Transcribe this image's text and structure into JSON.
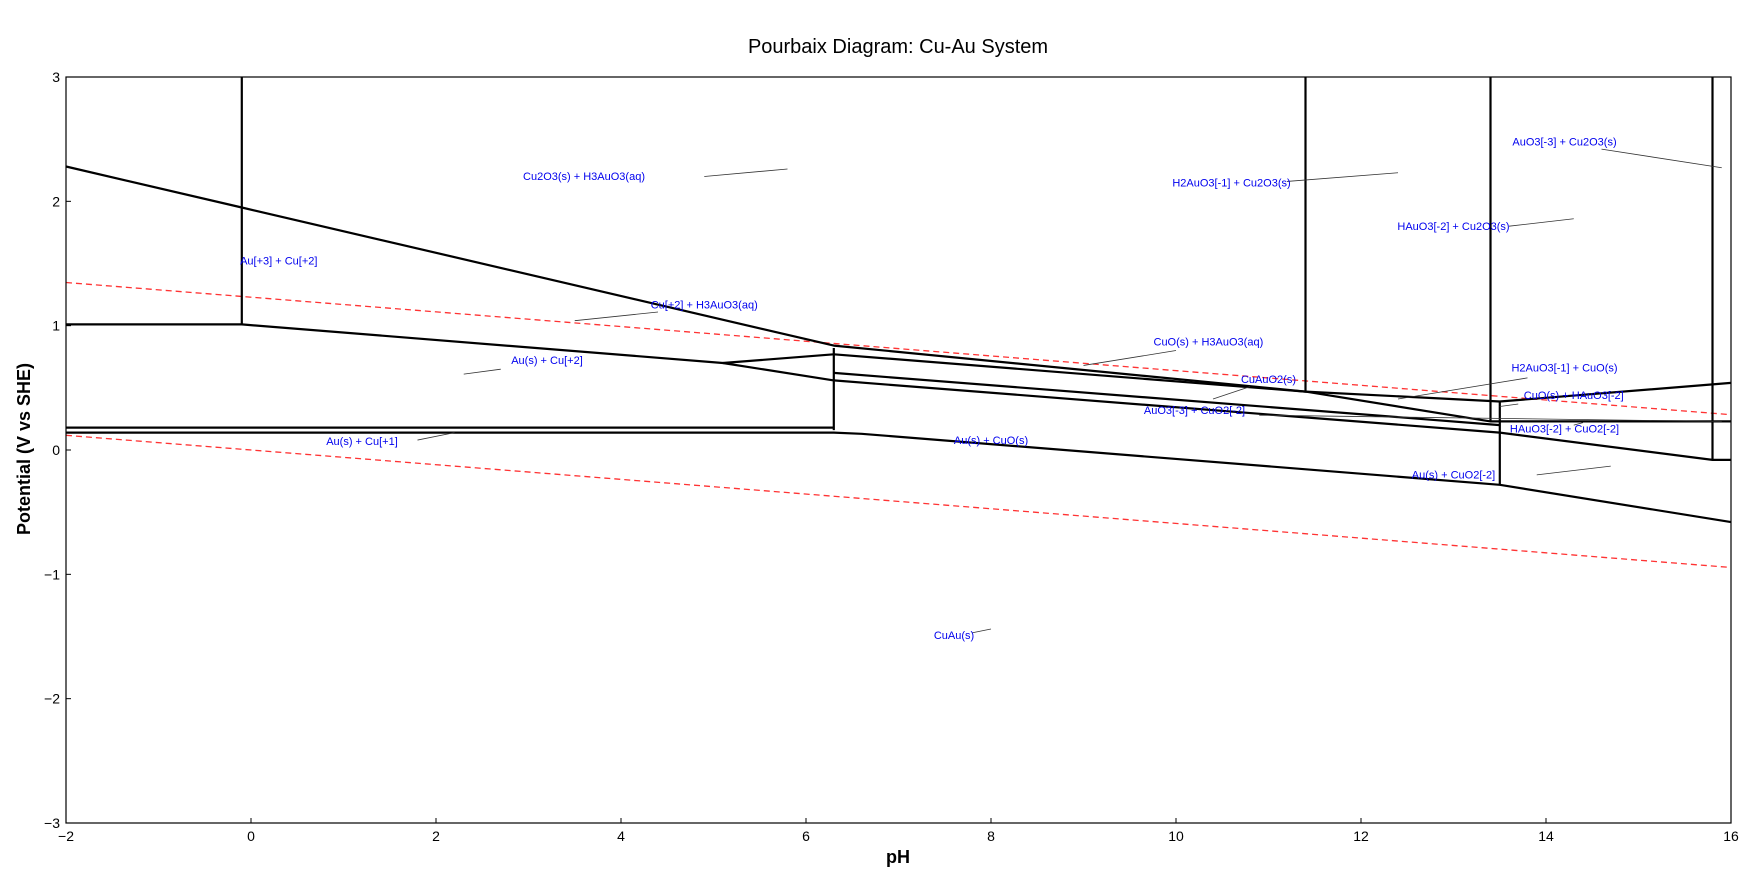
{
  "chart_data": {
    "type": "line",
    "title": "Pourbaix Diagram: Cu-Au System",
    "xlabel": "pH",
    "ylabel": "Potential (V vs SHE)",
    "xlim": [
      -2,
      16
    ],
    "ylim": [
      -3,
      3
    ],
    "xticks": [
      {
        "value": -2,
        "label": "−2"
      },
      {
        "value": 0,
        "label": "0"
      },
      {
        "value": 2,
        "label": "2"
      },
      {
        "value": 4,
        "label": "4"
      },
      {
        "value": 6,
        "label": "6"
      },
      {
        "value": 8,
        "label": "8"
      },
      {
        "value": 10,
        "label": "10"
      },
      {
        "value": 12,
        "label": "12"
      },
      {
        "value": 14,
        "label": "14"
      },
      {
        "value": 16,
        "label": "16"
      }
    ],
    "yticks": [
      {
        "value": -3,
        "label": "−3"
      },
      {
        "value": -2,
        "label": "−2"
      },
      {
        "value": -1,
        "label": "−1"
      },
      {
        "value": 0,
        "label": "0"
      },
      {
        "value": 1,
        "label": "1"
      },
      {
        "value": 2,
        "label": "2"
      },
      {
        "value": 3,
        "label": "3"
      }
    ],
    "grid": false,
    "colors": {
      "boundary": "#000000",
      "water": "#ff3333",
      "label": "#0000ee",
      "leader": "#333333"
    },
    "water_lines": [
      {
        "points": [
          [
            -2,
            1.347
          ],
          [
            16,
            0.284
          ]
        ]
      },
      {
        "points": [
          [
            -2,
            0.118
          ],
          [
            16,
            -0.945
          ]
        ]
      }
    ],
    "boundaries": [
      {
        "points": [
          [
            -2,
            2.28
          ],
          [
            -0.1,
            1.95
          ],
          [
            6.3,
            0.84
          ],
          [
            11.4,
            0.47
          ],
          [
            13.5,
            0.39
          ],
          [
            16,
            0.54
          ]
        ]
      },
      {
        "points": [
          [
            -0.1,
            3
          ],
          [
            -0.1,
            1.01
          ]
        ]
      },
      {
        "points": [
          [
            -2,
            1.01
          ],
          [
            -0.1,
            1.01
          ],
          [
            5.1,
            0.7
          ],
          [
            6.3,
            0.56
          ],
          [
            13.5,
            0.14
          ],
          [
            15.8,
            -0.08
          ],
          [
            16,
            -0.08
          ]
        ]
      },
      {
        "points": [
          [
            5.1,
            0.7
          ],
          [
            6.3,
            0.77
          ],
          [
            11.4,
            0.47
          ],
          [
            13.4,
            0.23
          ],
          [
            16,
            0.23
          ]
        ]
      },
      {
        "points": [
          [
            6.3,
            0.82
          ],
          [
            6.3,
            0.16
          ]
        ]
      },
      {
        "points": [
          [
            -2,
            0.18
          ],
          [
            6.3,
            0.18
          ]
        ]
      },
      {
        "points": [
          [
            -2,
            0.14
          ],
          [
            6.3,
            0.14
          ],
          [
            6.6,
            0.13
          ],
          [
            13.5,
            -0.28
          ],
          [
            16,
            -0.58
          ]
        ]
      },
      {
        "points": [
          [
            6.3,
            0.62
          ],
          [
            13.5,
            0.2
          ]
        ]
      },
      {
        "points": [
          [
            11.4,
            3
          ],
          [
            11.4,
            0.47
          ]
        ]
      },
      {
        "points": [
          [
            13.4,
            3
          ],
          [
            13.4,
            0.23
          ]
        ]
      },
      {
        "points": [
          [
            13.5,
            0.39
          ],
          [
            13.5,
            -0.28
          ]
        ]
      },
      {
        "points": [
          [
            15.8,
            3
          ],
          [
            15.8,
            -0.08
          ]
        ]
      }
    ],
    "annotations": [
      {
        "text": "Cu2O3(s) + H3AuO3(aq)",
        "at": [
          3.6,
          2.17
        ],
        "line_from": [
          4.9,
          2.2
        ],
        "line_to": [
          5.8,
          2.26
        ]
      },
      {
        "text": "Au[+3] + Cu[+2]",
        "at": [
          0.3,
          1.49
        ]
      },
      {
        "text": "Cu[+2] + H3AuO3(aq)",
        "at": [
          4.9,
          1.14
        ],
        "line_from": [
          4.4,
          1.11
        ],
        "line_to": [
          3.5,
          1.04
        ]
      },
      {
        "text": "Au(s) + Cu[+2]",
        "at": [
          3.2,
          0.69
        ],
        "line_from": [
          2.7,
          0.65
        ],
        "line_to": [
          2.3,
          0.61
        ]
      },
      {
        "text": "Au(s) + Cu[+1]",
        "at": [
          1.2,
          0.04
        ],
        "line_from": [
          1.8,
          0.08
        ],
        "line_to": [
          2.2,
          0.14
        ]
      },
      {
        "text": "Au(s) + CuO(s)",
        "at": [
          8.0,
          0.05
        ]
      },
      {
        "text": "CuAu(s)",
        "at": [
          7.6,
          -1.52
        ],
        "line_from": [
          7.8,
          -1.47
        ],
        "line_to": [
          8.0,
          -1.44
        ]
      },
      {
        "text": "CuO(s) + H3AuO3(aq)",
        "at": [
          10.35,
          0.84
        ],
        "line_from": [
          10.0,
          0.8
        ],
        "line_to": [
          9.0,
          0.68
        ]
      },
      {
        "text": "CuAuO2(s)",
        "at": [
          11.0,
          0.54
        ],
        "line_from": [
          10.8,
          0.51
        ],
        "line_to": [
          10.4,
          0.41
        ]
      },
      {
        "text": "AuO3[-3] + CuO2[-2]",
        "at": [
          10.2,
          0.29
        ],
        "line_from": [
          10.9,
          0.28
        ],
        "line_to": [
          15.9,
          0.23
        ]
      },
      {
        "text": "H2AuO3[-1] + Cu2O3(s)",
        "at": [
          10.6,
          2.12
        ],
        "line_from": [
          11.2,
          2.16
        ],
        "line_to": [
          12.4,
          2.23
        ]
      },
      {
        "text": "HAuO3[-2] + Cu2O3(s)",
        "at": [
          13.0,
          1.77
        ],
        "line_from": [
          13.6,
          1.8
        ],
        "line_to": [
          14.3,
          1.86
        ]
      },
      {
        "text": "AuO3[-3] + Cu2O3(s)",
        "at": [
          14.2,
          2.45
        ],
        "line_from": [
          14.6,
          2.42
        ],
        "line_to": [
          15.9,
          2.27
        ]
      },
      {
        "text": "H2AuO3[-1] + CuO(s)",
        "at": [
          14.2,
          0.63
        ],
        "line_from": [
          13.8,
          0.58
        ],
        "line_to": [
          12.4,
          0.41
        ]
      },
      {
        "text": "CuO(s) + HAuO3[-2]",
        "at": [
          14.3,
          0.41
        ],
        "line_from": [
          13.7,
          0.37
        ],
        "line_to": [
          13.5,
          0.35
        ]
      },
      {
        "text": "HAuO3[-2] + CuO2[-2]",
        "at": [
          14.2,
          0.14
        ],
        "line_from": [
          14.3,
          0.2
        ],
        "line_to": [
          14.4,
          0.22
        ]
      },
      {
        "text": "Au(s) + CuO2[-2]",
        "at": [
          13.0,
          -0.23
        ],
        "line_from": [
          13.9,
          -0.2
        ],
        "line_to": [
          14.7,
          -0.13
        ]
      }
    ]
  }
}
